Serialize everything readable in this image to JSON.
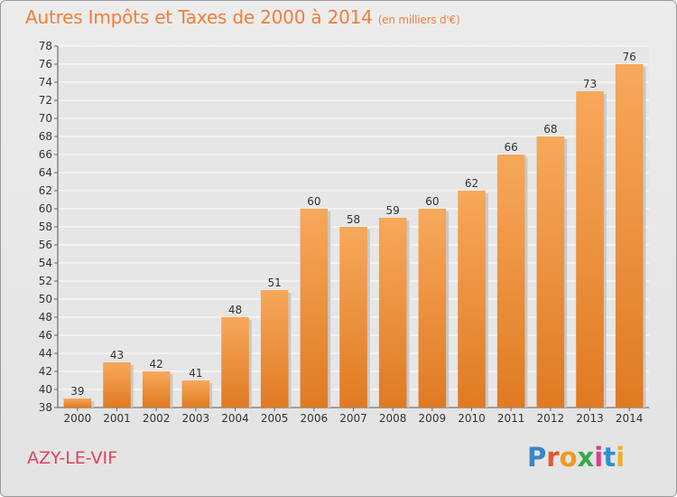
{
  "title": "Autres Impôts et Taxes de 2000 à 2014",
  "subtitle": "(en milliers d'€)",
  "commune": "AZY-LE-VIF",
  "logo": {
    "text": "Proxiti",
    "colors": [
      "#3a86c8",
      "#e4572e",
      "#f29a1d",
      "#3aa84a",
      "#e03a8f",
      "#2f8fd1",
      "#f2b01d"
    ]
  },
  "colors": {
    "title": "#f07f3a",
    "commune": "#e0435e",
    "bar_light": "#f7a85a",
    "bar_dark": "#e07a22",
    "grid": "#ffffff",
    "axis_text": "#333333"
  },
  "chart_data": {
    "type": "bar",
    "categories": [
      "2000",
      "2001",
      "2002",
      "2003",
      "2004",
      "2005",
      "2006",
      "2007",
      "2008",
      "2009",
      "2010",
      "2011",
      "2012",
      "2013",
      "2014"
    ],
    "values": [
      39,
      43,
      42,
      41,
      48,
      51,
      60,
      58,
      59,
      60,
      62,
      66,
      68,
      73,
      76
    ],
    "ylim": [
      38,
      78
    ],
    "yticks": [
      38,
      40,
      42,
      44,
      46,
      48,
      50,
      52,
      54,
      56,
      58,
      60,
      62,
      64,
      66,
      68,
      70,
      72,
      74,
      76,
      78
    ],
    "grid": true
  }
}
